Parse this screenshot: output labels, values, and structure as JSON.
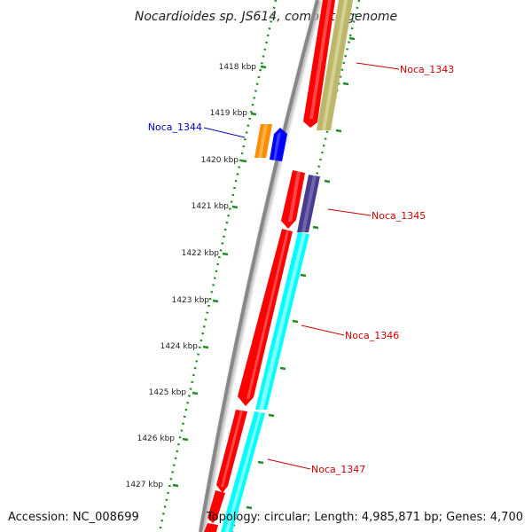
{
  "title": "Nocardioides sp. JS614, complete genome",
  "footer": {
    "accession": "Accession: NC_008699",
    "topology": "Topology: circular; Length: 4,985,871 bp; Genes: 4,700"
  },
  "scale": {
    "ticks": [
      {
        "label": "1418 kbp"
      },
      {
        "label": "1419 kbp"
      },
      {
        "label": "1420 kbp"
      },
      {
        "label": "1421 kbp"
      },
      {
        "label": "1422 kbp"
      },
      {
        "label": "1423 kbp"
      },
      {
        "label": "1424 kbp"
      },
      {
        "label": "1425 kbp"
      },
      {
        "label": "1426 kbp"
      },
      {
        "label": "1427 kbp"
      }
    ]
  },
  "genes": {
    "noca_1343": {
      "label": "Noca_1343",
      "color": "#cc0000"
    },
    "noca_1344": {
      "label": "Noca_1344",
      "color": "#0000cc"
    },
    "noca_1345": {
      "label": "Noca_1345",
      "color": "#cc0000"
    },
    "noca_1346": {
      "label": "Noca_1346",
      "color": "#cc0000"
    },
    "noca_1347": {
      "label": "Noca_1347",
      "color": "#cc0000"
    }
  },
  "colors": {
    "backbone": "#888888",
    "cds": "#ff0000",
    "khaki": "#bdb76b",
    "slate": "#483d8b",
    "cyan": "#00ffff",
    "orange": "#ff8c00",
    "blue": "#0000ff",
    "ticks_green": "#228b22"
  }
}
